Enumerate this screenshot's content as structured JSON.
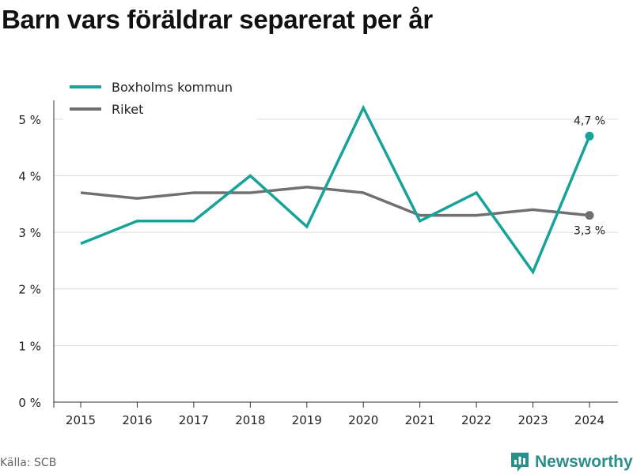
{
  "title": "Barn vars föräldrar separerat per år",
  "source": "Källa: SCB",
  "brand": {
    "name": "Newsworthy",
    "icon": "newsworthy-logo-icon",
    "color": "#2a8f8a"
  },
  "chart_data": {
    "type": "line",
    "title": "Barn vars föräldrar separerat per år",
    "x": [
      2015,
      2016,
      2017,
      2018,
      2019,
      2020,
      2021,
      2022,
      2023,
      2024
    ],
    "x_tick_labels": [
      "2015",
      "2016",
      "2017",
      "2018",
      "2019",
      "2020",
      "2021",
      "2022",
      "2023",
      "2024"
    ],
    "y_tick_values": [
      0,
      1,
      2,
      3,
      4,
      5
    ],
    "y_tick_labels": [
      "0 %",
      "1 %",
      "2 %",
      "3 %",
      "4 %",
      "5 %"
    ],
    "ylim": [
      0,
      5.5
    ],
    "xlabel": "",
    "ylabel": "",
    "grid": "horizontal",
    "legend_position": "top-left",
    "series": [
      {
        "name": "Boxholms kommun",
        "color": "#17a398",
        "values": [
          2.8,
          3.2,
          3.2,
          4.0,
          3.1,
          5.2,
          3.2,
          3.7,
          2.3,
          4.7
        ],
        "end_label": "4,7 %"
      },
      {
        "name": "Riket",
        "color": "#707070",
        "values": [
          3.7,
          3.6,
          3.7,
          3.7,
          3.8,
          3.7,
          3.3,
          3.3,
          3.4,
          3.3
        ],
        "end_label": "3,3 %"
      }
    ]
  }
}
